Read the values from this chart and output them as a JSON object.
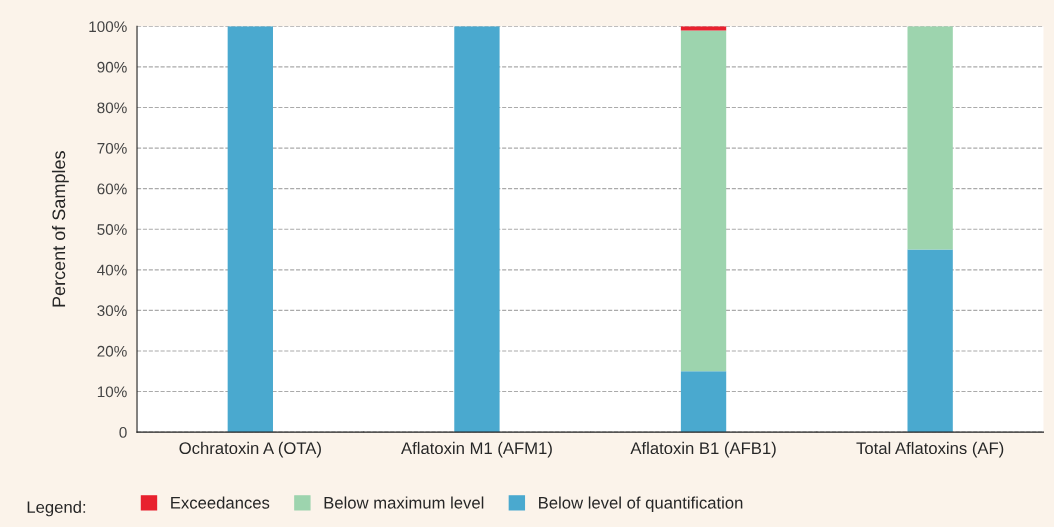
{
  "chart_data": {
    "type": "bar",
    "stacked": true,
    "ylabel": "Percent of Samples",
    "legend_title": "Legend:",
    "categories": [
      "Ochratoxin A (OTA)",
      "Aflatoxin M1 (AFM1)",
      "Aflatoxin B1 (AFB1)",
      "Total Aflatoxins (AF)"
    ],
    "series": [
      {
        "name": "Below level of quantification",
        "color": "#4aa9cf",
        "values": [
          100,
          100,
          15,
          45
        ]
      },
      {
        "name": "Below maximum level",
        "color": "#9dd4ae",
        "values": [
          0,
          0,
          84,
          55
        ]
      },
      {
        "name": "Exceedances",
        "color": "#e8212e",
        "values": [
          0,
          0,
          1,
          0
        ]
      }
    ],
    "ylim": [
      0,
      100
    ],
    "yticks": [
      {
        "value": 0,
        "label": "0"
      },
      {
        "value": 10,
        "label": "10%"
      },
      {
        "value": 20,
        "label": "20%"
      },
      {
        "value": 30,
        "label": "30%"
      },
      {
        "value": 40,
        "label": "40%"
      },
      {
        "value": 50,
        "label": "50%"
      },
      {
        "value": 60,
        "label": "60%"
      },
      {
        "value": 70,
        "label": "70%"
      },
      {
        "value": 80,
        "label": "80%"
      },
      {
        "value": 90,
        "label": "90%"
      },
      {
        "value": 100,
        "label": "100%"
      }
    ],
    "grid": "y",
    "legend": "bottom"
  }
}
